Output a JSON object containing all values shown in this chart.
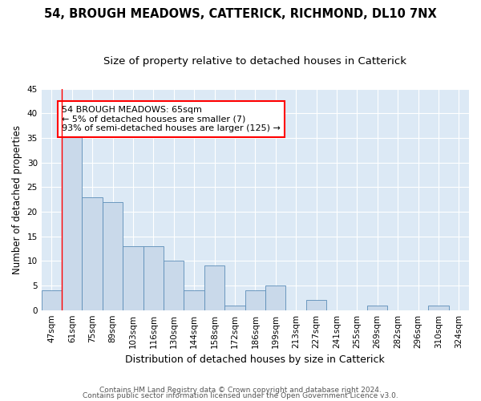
{
  "title1": "54, BROUGH MEADOWS, CATTERICK, RICHMOND, DL10 7NX",
  "title2": "Size of property relative to detached houses in Catterick",
  "xlabel": "Distribution of detached houses by size in Catterick",
  "ylabel": "Number of detached properties",
  "categories": [
    "47sqm",
    "61sqm",
    "75sqm",
    "89sqm",
    "103sqm",
    "116sqm",
    "130sqm",
    "144sqm",
    "158sqm",
    "172sqm",
    "186sqm",
    "199sqm",
    "213sqm",
    "227sqm",
    "241sqm",
    "255sqm",
    "269sqm",
    "282sqm",
    "296sqm",
    "310sqm",
    "324sqm"
  ],
  "values": [
    4,
    36,
    23,
    22,
    13,
    13,
    10,
    4,
    9,
    1,
    4,
    5,
    0,
    2,
    0,
    0,
    1,
    0,
    0,
    1,
    0
  ],
  "bar_color": "#c9d9ea",
  "bar_edge_color": "#5b8db8",
  "red_line_x": 0.5,
  "annotation_text": "54 BROUGH MEADOWS: 65sqm\n← 5% of detached houses are smaller (7)\n93% of semi-detached houses are larger (125) →",
  "annotation_box_color": "white",
  "annotation_box_edge": "red",
  "footer1": "Contains HM Land Registry data © Crown copyright and database right 2024.",
  "footer2": "Contains public sector information licensed under the Open Government Licence v3.0.",
  "background_color": "#dce9f5",
  "ylim": [
    0,
    45
  ],
  "yticks": [
    0,
    5,
    10,
    15,
    20,
    25,
    30,
    35,
    40,
    45
  ],
  "title1_fontsize": 10.5,
  "title2_fontsize": 9.5,
  "xlabel_fontsize": 9,
  "ylabel_fontsize": 8.5,
  "tick_fontsize": 7.5,
  "annotation_fontsize": 8,
  "footer_fontsize": 6.5
}
